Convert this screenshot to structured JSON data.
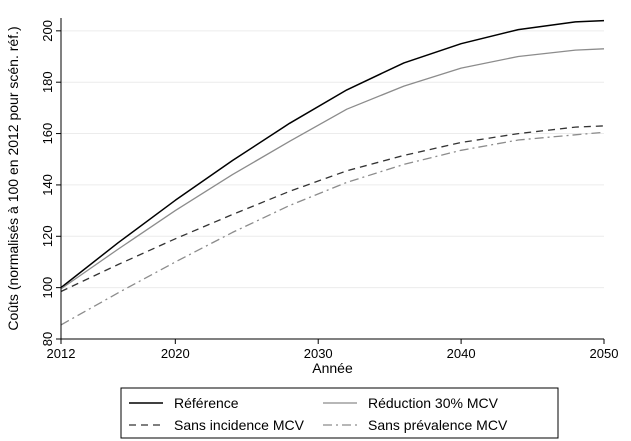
{
  "chart_data": {
    "type": "line",
    "title": "",
    "xlabel": "Année",
    "ylabel": "Coûts (normalisés à 100 en 2012 pour scén. réf.)",
    "xlim": [
      2012,
      2050
    ],
    "ylim": [
      80,
      205
    ],
    "xticks": [
      2012,
      2020,
      2030,
      2040,
      2050
    ],
    "yticks": [
      80,
      100,
      120,
      140,
      160,
      180,
      200
    ],
    "grid": "horizontal",
    "legend_position": "bottom",
    "x": [
      2012,
      2016,
      2020,
      2024,
      2028,
      2032,
      2036,
      2040,
      2044,
      2048,
      2050
    ],
    "series": [
      {
        "name": "Référence",
        "style": "solid",
        "color": "#000000",
        "values": [
          100,
          117.5,
          134,
          149.5,
          164,
          177,
          187.5,
          195,
          200.5,
          203.5,
          204
        ]
      },
      {
        "name": "Réduction 30% MCV",
        "style": "solid",
        "color": "#8c8c8c",
        "values": [
          99.5,
          115,
          130,
          144,
          157,
          169.5,
          178.5,
          185.5,
          190,
          192.5,
          193
        ]
      },
      {
        "name": "Sans incidence MCV",
        "style": "dashed",
        "color": "#333333",
        "values": [
          98.5,
          109,
          119,
          128.5,
          137.5,
          145.5,
          151.5,
          156.5,
          160,
          162.5,
          163
        ]
      },
      {
        "name": "Sans prévalence MCV",
        "style": "dashdot",
        "color": "#8c8c8c",
        "values": [
          85.5,
          98,
          110,
          121.5,
          132,
          141,
          148,
          153.5,
          157.5,
          159.5,
          160.5
        ]
      }
    ]
  }
}
